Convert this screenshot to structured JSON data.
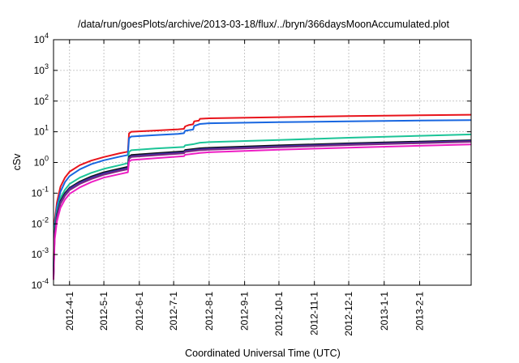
{
  "chart_data": {
    "type": "line",
    "title": "/data/run/goesPlots/archive/2013-03-18/flux/../bryn/366daysMoonAccumulated.plot",
    "xlabel": "Coordinated Universal Time (UTC)",
    "ylabel": "cSv",
    "yscale": "log",
    "ylim": [
      0.0001,
      10000
    ],
    "xlim": [
      "2012-03-18",
      "2013-03-18"
    ],
    "grid": true,
    "y_ticks": [
      {
        "value": 0.0001,
        "base": "10",
        "exp": "-4"
      },
      {
        "value": 0.001,
        "base": "10",
        "exp": "-3"
      },
      {
        "value": 0.01,
        "base": "10",
        "exp": "-2"
      },
      {
        "value": 0.1,
        "base": "10",
        "exp": "-1"
      },
      {
        "value": 1,
        "base": "10",
        "exp": "0"
      },
      {
        "value": 10,
        "base": "10",
        "exp": "1"
      },
      {
        "value": 100,
        "base": "10",
        "exp": "2"
      },
      {
        "value": 1000,
        "base": "10",
        "exp": "3"
      },
      {
        "value": 10000,
        "base": "10",
        "exp": "4"
      }
    ],
    "x_ticks": [
      {
        "date": "2012-04-01",
        "label": "2012-4-1"
      },
      {
        "date": "2012-05-01",
        "label": "2012-5-1"
      },
      {
        "date": "2012-06-01",
        "label": "2012-6-1"
      },
      {
        "date": "2012-07-01",
        "label": "2012-7-1"
      },
      {
        "date": "2012-08-01",
        "label": "2012-8-1"
      },
      {
        "date": "2012-09-01",
        "label": "2012-9-1"
      },
      {
        "date": "2012-10-01",
        "label": "2012-10-1"
      },
      {
        "date": "2012-11-01",
        "label": "2012-11-1"
      },
      {
        "date": "2012-12-01",
        "label": "2012-12-1"
      },
      {
        "date": "2013-01-01",
        "label": "2013-1-1"
      },
      {
        "date": "2013-02-01",
        "label": "2013-2-1"
      }
    ],
    "series": [
      {
        "color": "#e8141c",
        "points": [
          [
            "2012-03-18",
            0.0005
          ],
          [
            "2012-03-19",
            0.012
          ],
          [
            "2012-03-21",
            0.05
          ],
          [
            "2012-03-24",
            0.16
          ],
          [
            "2012-03-28",
            0.32
          ],
          [
            "2012-04-01",
            0.5
          ],
          [
            "2012-04-10",
            0.82
          ],
          [
            "2012-04-20",
            1.15
          ],
          [
            "2012-05-01",
            1.5
          ],
          [
            "2012-05-15",
            2.0
          ],
          [
            "2012-05-22",
            2.25
          ],
          [
            "2012-05-23",
            8.8
          ],
          [
            "2012-05-25",
            10.0
          ],
          [
            "2012-06-15",
            11.0
          ],
          [
            "2012-07-05",
            12.0
          ],
          [
            "2012-07-10",
            12.5
          ],
          [
            "2012-07-11",
            15.0
          ],
          [
            "2012-07-14",
            16.5
          ],
          [
            "2012-07-18",
            17.5
          ],
          [
            "2012-07-19",
            22.0
          ],
          [
            "2012-07-23",
            23.0
          ],
          [
            "2012-07-24",
            26.5
          ],
          [
            "2012-08-01",
            27.5
          ],
          [
            "2012-10-01",
            30.0
          ],
          [
            "2012-12-01",
            32.5
          ],
          [
            "2013-02-01",
            34.5
          ],
          [
            "2013-03-18",
            36.0
          ]
        ]
      },
      {
        "color": "#1866e0",
        "points": [
          [
            "2012-03-18",
            0.0004
          ],
          [
            "2012-03-19",
            0.009
          ],
          [
            "2012-03-21",
            0.035
          ],
          [
            "2012-03-24",
            0.11
          ],
          [
            "2012-03-28",
            0.23
          ],
          [
            "2012-04-01",
            0.36
          ],
          [
            "2012-04-10",
            0.6
          ],
          [
            "2012-04-20",
            0.88
          ],
          [
            "2012-05-01",
            1.18
          ],
          [
            "2012-05-15",
            1.55
          ],
          [
            "2012-05-22",
            1.75
          ],
          [
            "2012-05-23",
            6.2
          ],
          [
            "2012-05-25",
            7.0
          ],
          [
            "2012-06-15",
            7.8
          ],
          [
            "2012-07-05",
            8.5
          ],
          [
            "2012-07-10",
            9.0
          ],
          [
            "2012-07-11",
            10.8
          ],
          [
            "2012-07-18",
            11.8
          ],
          [
            "2012-07-19",
            15.5
          ],
          [
            "2012-07-24",
            18.0
          ],
          [
            "2012-08-01",
            19.0
          ],
          [
            "2012-10-01",
            20.5
          ],
          [
            "2012-12-01",
            22.0
          ],
          [
            "2013-02-01",
            23.2
          ],
          [
            "2013-03-18",
            24.0
          ]
        ]
      },
      {
        "color": "#1cc497",
        "points": [
          [
            "2012-03-18",
            0.0003
          ],
          [
            "2012-03-19",
            0.007
          ],
          [
            "2012-03-21",
            0.025
          ],
          [
            "2012-03-24",
            0.07
          ],
          [
            "2012-03-28",
            0.13
          ],
          [
            "2012-04-01",
            0.2
          ],
          [
            "2012-04-10",
            0.32
          ],
          [
            "2012-04-20",
            0.46
          ],
          [
            "2012-05-01",
            0.62
          ],
          [
            "2012-05-15",
            0.82
          ],
          [
            "2012-05-22",
            0.95
          ],
          [
            "2012-05-23",
            2.2
          ],
          [
            "2012-05-25",
            2.5
          ],
          [
            "2012-06-15",
            2.85
          ],
          [
            "2012-07-10",
            3.2
          ],
          [
            "2012-07-11",
            3.6
          ],
          [
            "2012-07-19",
            4.0
          ],
          [
            "2012-07-24",
            4.4
          ],
          [
            "2012-08-01",
            4.6
          ],
          [
            "2012-10-01",
            5.4
          ],
          [
            "2012-12-01",
            6.4
          ],
          [
            "2013-02-01",
            7.4
          ],
          [
            "2013-03-18",
            8.2
          ]
        ]
      },
      {
        "color": "#111111",
        "points": [
          [
            "2012-03-18",
            0.0002
          ],
          [
            "2012-03-19",
            0.005
          ],
          [
            "2012-03-21",
            0.02
          ],
          [
            "2012-03-24",
            0.055
          ],
          [
            "2012-03-28",
            0.1
          ],
          [
            "2012-04-01",
            0.15
          ],
          [
            "2012-04-10",
            0.24
          ],
          [
            "2012-04-20",
            0.35
          ],
          [
            "2012-05-01",
            0.48
          ],
          [
            "2012-05-15",
            0.63
          ],
          [
            "2012-05-22",
            0.72
          ],
          [
            "2012-05-23",
            1.55
          ],
          [
            "2012-05-25",
            1.75
          ],
          [
            "2012-06-15",
            2.0
          ],
          [
            "2012-07-10",
            2.3
          ],
          [
            "2012-07-11",
            2.55
          ],
          [
            "2012-07-24",
            2.9
          ],
          [
            "2012-08-01",
            3.0
          ],
          [
            "2012-10-01",
            3.6
          ],
          [
            "2012-12-01",
            4.2
          ],
          [
            "2013-02-01",
            4.8
          ],
          [
            "2013-03-18",
            5.3
          ]
        ]
      },
      {
        "color": "#3a2ea8",
        "points": [
          [
            "2012-03-18",
            0.0002
          ],
          [
            "2012-03-19",
            0.0045
          ],
          [
            "2012-03-21",
            0.018
          ],
          [
            "2012-03-24",
            0.05
          ],
          [
            "2012-03-28",
            0.09
          ],
          [
            "2012-04-01",
            0.14
          ],
          [
            "2012-04-10",
            0.22
          ],
          [
            "2012-04-20",
            0.32
          ],
          [
            "2012-05-01",
            0.44
          ],
          [
            "2012-05-15",
            0.58
          ],
          [
            "2012-05-22",
            0.66
          ],
          [
            "2012-05-23",
            1.42
          ],
          [
            "2012-05-25",
            1.6
          ],
          [
            "2012-06-15",
            1.85
          ],
          [
            "2012-07-10",
            2.12
          ],
          [
            "2012-07-11",
            2.35
          ],
          [
            "2012-07-24",
            2.7
          ],
          [
            "2012-08-01",
            2.8
          ],
          [
            "2012-10-01",
            3.35
          ],
          [
            "2012-12-01",
            3.95
          ],
          [
            "2013-02-01",
            4.5
          ],
          [
            "2013-03-18",
            5.0
          ]
        ]
      },
      {
        "color": "#7a2a80",
        "points": [
          [
            "2012-03-18",
            0.00018
          ],
          [
            "2012-03-19",
            0.004
          ],
          [
            "2012-03-21",
            0.016
          ],
          [
            "2012-03-24",
            0.045
          ],
          [
            "2012-03-28",
            0.082
          ],
          [
            "2012-04-01",
            0.125
          ],
          [
            "2012-04-10",
            0.2
          ],
          [
            "2012-04-20",
            0.29
          ],
          [
            "2012-05-01",
            0.4
          ],
          [
            "2012-05-15",
            0.53
          ],
          [
            "2012-05-22",
            0.6
          ],
          [
            "2012-05-23",
            1.32
          ],
          [
            "2012-05-25",
            1.5
          ],
          [
            "2012-06-15",
            1.72
          ],
          [
            "2012-07-10",
            1.98
          ],
          [
            "2012-07-11",
            2.2
          ],
          [
            "2012-07-24",
            2.5
          ],
          [
            "2012-08-01",
            2.6
          ],
          [
            "2012-10-01",
            3.15
          ],
          [
            "2012-12-01",
            3.7
          ],
          [
            "2013-02-01",
            4.25
          ],
          [
            "2013-03-18",
            4.7
          ]
        ]
      },
      {
        "color": "#ee1ec4",
        "points": [
          [
            "2012-03-18",
            0.00015
          ],
          [
            "2012-03-19",
            0.003
          ],
          [
            "2012-03-21",
            0.012
          ],
          [
            "2012-03-24",
            0.033
          ],
          [
            "2012-03-28",
            0.062
          ],
          [
            "2012-04-01",
            0.095
          ],
          [
            "2012-04-10",
            0.155
          ],
          [
            "2012-04-20",
            0.23
          ],
          [
            "2012-05-01",
            0.32
          ],
          [
            "2012-05-15",
            0.42
          ],
          [
            "2012-05-22",
            0.48
          ],
          [
            "2012-05-23",
            1.05
          ],
          [
            "2012-05-25",
            1.2
          ],
          [
            "2012-06-15",
            1.38
          ],
          [
            "2012-07-10",
            1.6
          ],
          [
            "2012-07-11",
            1.78
          ],
          [
            "2012-07-24",
            2.05
          ],
          [
            "2012-08-01",
            2.15
          ],
          [
            "2012-10-01",
            2.6
          ],
          [
            "2012-12-01",
            3.05
          ],
          [
            "2013-02-01",
            3.5
          ],
          [
            "2013-03-18",
            3.85
          ]
        ]
      }
    ]
  }
}
